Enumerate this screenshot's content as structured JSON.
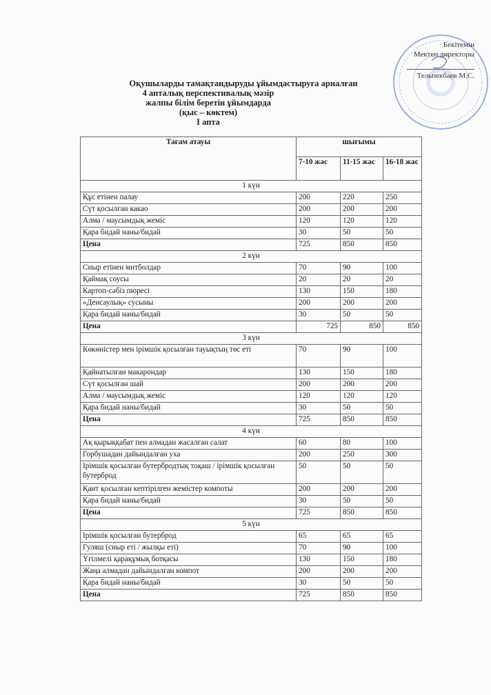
{
  "approval": {
    "line1": "Бекітемін",
    "line2": "Мектеп директоры",
    "name": "Тельпекбаев М.С."
  },
  "title": {
    "line1": "Оқушыларды тамақтандыруды ұйымдастыруға арналған",
    "line2": "4 апталық перспективалық мәзір",
    "line3": "жалпы білім беретін ұйымдарда",
    "line4": "(қыс – көктем)",
    "line5": "I апта"
  },
  "table": {
    "col_name": "Тағам атауы",
    "col_yield": "шығымы",
    "age_groups": [
      "7-10 жас",
      "11-15 жас",
      "16-18 жас"
    ],
    "days": [
      {
        "label": "1 күн",
        "rows": [
          {
            "name": "Құс етінен палау",
            "values": [
              "200",
              "220",
              "250"
            ]
          },
          {
            "name": "Сүт қосылған какао",
            "values": [
              "200",
              "200",
              "200"
            ]
          },
          {
            "name": "Алма / маусымдық жеміс",
            "values": [
              "120",
              "120",
              "120"
            ]
          },
          {
            "name": "Қара бидай наны/бидай",
            "values": [
              "30",
              "50",
              "50"
            ]
          },
          {
            "name": "Цена",
            "values": [
              "725",
              "850",
              "850"
            ],
            "price": true
          }
        ]
      },
      {
        "label": "2 күн",
        "rows": [
          {
            "name": "Сиыр етінен митболдар",
            "values": [
              "70",
              "90",
              "100"
            ]
          },
          {
            "name": "Қаймақ соусы",
            "values": [
              "20",
              "20",
              "20"
            ]
          },
          {
            "name": "Картоп-сәбіз пюресі",
            "values": [
              "130",
              "150",
              "180"
            ]
          },
          {
            "name": "«Денсаулық» сусыны",
            "values": [
              "200",
              "200",
              "200"
            ]
          },
          {
            "name": "Қара бидай наны/бидай",
            "values": [
              "30",
              "50",
              "50"
            ]
          },
          {
            "name": "Цена",
            "values": [
              "725",
              "850",
              "850"
            ],
            "price": true,
            "right": true
          }
        ]
      },
      {
        "label": "3 күн",
        "rows": [
          {
            "name": "Көкөністер мен ірімшік қосылған тауықтың төс еті",
            "values": [
              "70",
              "90",
              "100"
            ],
            "tall": true
          },
          {
            "name": "Қайнатылған макарондар",
            "values": [
              "130",
              "150",
              "180"
            ]
          },
          {
            "name": "Сүт қосылған шай",
            "values": [
              "200",
              "200",
              "200"
            ]
          },
          {
            "name": "Алма / маусымдық жеміс",
            "values": [
              "120",
              "120",
              "120"
            ]
          },
          {
            "name": "Қара бидай наны/бидай",
            "values": [
              "30",
              "50",
              "50"
            ]
          },
          {
            "name": "Цена",
            "values": [
              "725",
              "850",
              "850"
            ],
            "price": true
          }
        ]
      },
      {
        "label": "4 күн",
        "rows": [
          {
            "name": "Ақ қырыққабат пен алмадан жасалған салат",
            "values": [
              "60",
              "80",
              "100"
            ]
          },
          {
            "name": "Горбушадан дайындалған уха",
            "values": [
              "200",
              "250",
              "300"
            ]
          },
          {
            "name": "Ірімшік қосылған бутербродтық тоқаш / ірімшік қосылған бутерброд",
            "values": [
              "50",
              "50",
              "50"
            ],
            "tall": true
          },
          {
            "name": "Қант қосылған кептірілген жемістер компоты",
            "values": [
              "200",
              "200",
              "200"
            ]
          },
          {
            "name": "Қара бидай наны/бидай",
            "values": [
              "30",
              "50",
              "50"
            ]
          },
          {
            "name": "Цена",
            "values": [
              "725",
              "850",
              "850"
            ],
            "price": true
          }
        ]
      },
      {
        "label": "5 күн",
        "rows": [
          {
            "name": "Ірімшік қосылған бутерброд",
            "values": [
              "65",
              "65",
              "65"
            ]
          },
          {
            "name": "Гуляш (сиыр еті / жылқы еті)",
            "values": [
              "70",
              "90",
              "100"
            ]
          },
          {
            "name": "Үгілмелі қарақұмық ботқасы",
            "values": [
              "130",
              "150",
              "180"
            ]
          },
          {
            "name": "Жаңа алмадан дайындалған компот",
            "values": [
              "200",
              "200",
              "200"
            ]
          },
          {
            "name": "Қара бидай наны/бидай",
            "values": [
              "30",
              "50",
              "50"
            ]
          },
          {
            "name": "Цена",
            "values": [
              "725",
              "850",
              "850"
            ],
            "price": true
          }
        ]
      }
    ]
  },
  "colors": {
    "stamp": "#5a7fc8",
    "ink": "#222222"
  }
}
